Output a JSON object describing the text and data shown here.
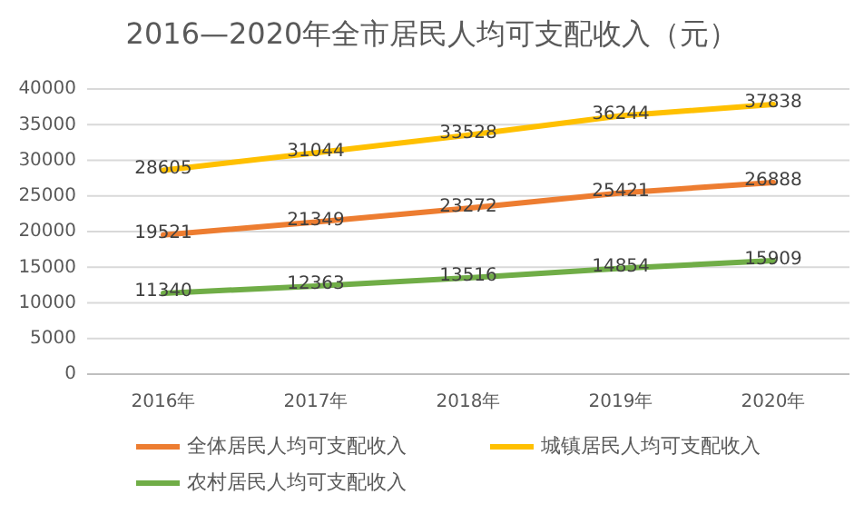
{
  "chart_data": {
    "type": "line",
    "title": "2016—2020年全市居民人均可支配收入（元）",
    "categories": [
      "2016年",
      "2017年",
      "2018年",
      "2019年",
      "2020年"
    ],
    "series": [
      {
        "name": "全体居民人均可支配收入",
        "color": "#ed7d31",
        "values": [
          19521,
          21349,
          23272,
          25421,
          26888
        ]
      },
      {
        "name": "城镇居民人均可支配收入",
        "color": "#ffc000",
        "values": [
          28605,
          31044,
          33528,
          36244,
          37838
        ]
      },
      {
        "name": "农村居民人均可支配收入",
        "color": "#70ad47",
        "values": [
          11340,
          12363,
          13516,
          14854,
          15909
        ]
      }
    ],
    "ylim": [
      0,
      40000
    ],
    "yticks": [
      0,
      5000,
      10000,
      15000,
      20000,
      25000,
      30000,
      35000,
      40000
    ],
    "grid": "y",
    "legend": "bottom",
    "marker": "none",
    "line_style": "solid",
    "data_labels": true
  }
}
